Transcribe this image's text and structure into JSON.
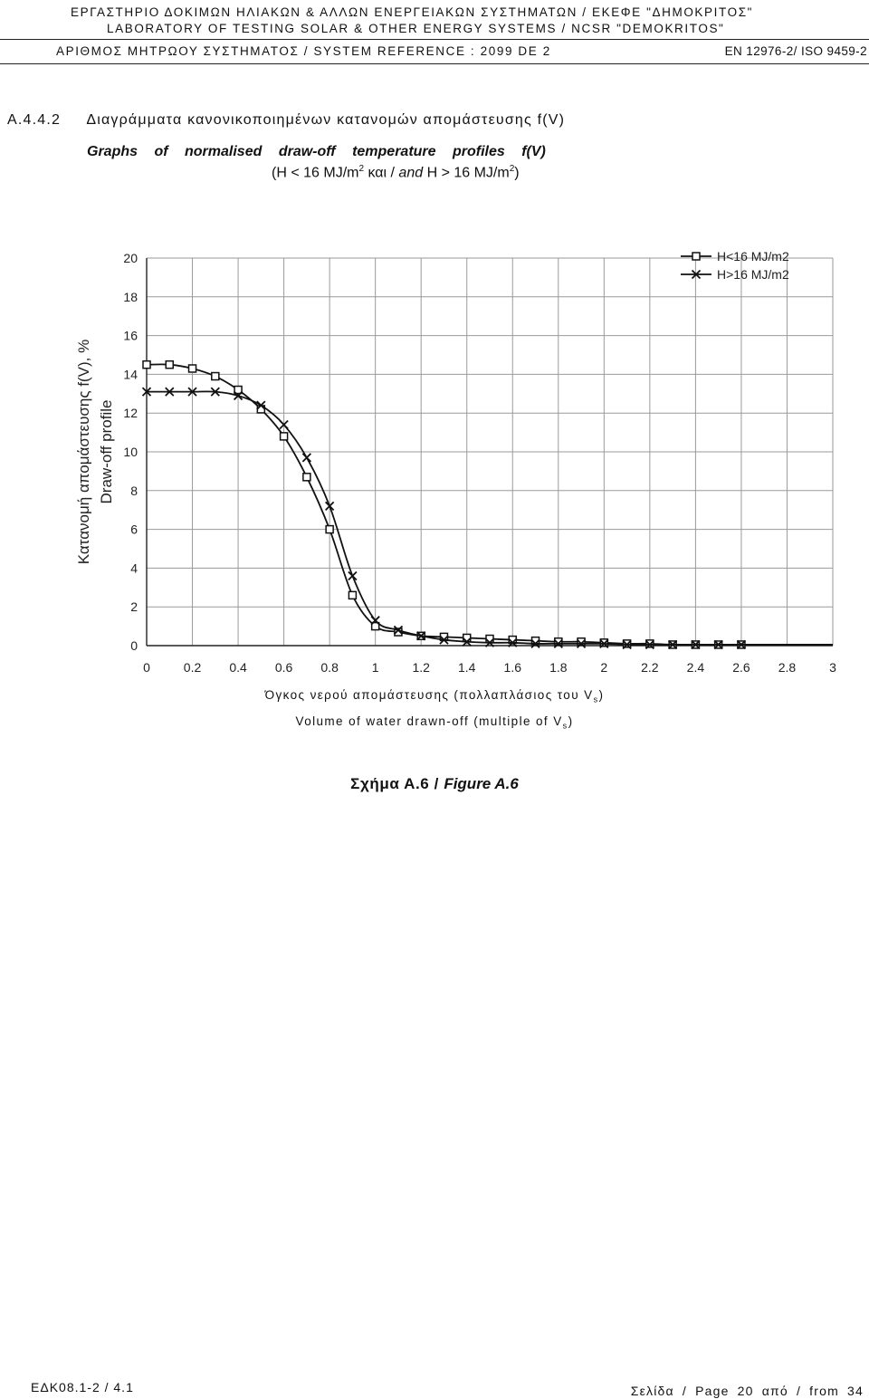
{
  "header": {
    "line1": "ΕΡΓΑΣΤΗΡΙΟ ΔΟΚΙΜΩΝ ΗΛΙΑΚΩΝ & ΑΛΛΩΝ ΕΝΕΡΓΕΙΑΚΩΝ ΣΥΣΤΗΜΑΤΩΝ / ΕΚΕΦΕ \"ΔΗΜΟΚΡΙΤΟΣ\"",
    "line2": "LABORATORY OF TESTING SOLAR & OTHER ENERGY SYSTEMS / NCSR \"DEMOKRITOS\"",
    "ref": "ΑΡΙΘΜΟΣ ΜΗΤΡΩΟΥ ΣΥΣΤΗΜΑΤΟΣ / SYSTEM REFERENCE : 2099 DE 2",
    "standard": "EN 12976-2/ ISO 9459-2"
  },
  "section": {
    "number": "A.4.4.2",
    "title_gr": "Διαγράμματα κανονικοποιημένων κατανομών απομάστευσης f(V)",
    "title_en": "Graphs of normalised draw-off temperature profiles f(V)",
    "cond_a": "(H < 16 MJ/m",
    "cond_sup1": "2",
    "cond_b": " και / ",
    "cond_and": "and",
    "cond_c": " H > 16 MJ/m",
    "cond_sup2": "2",
    "cond_d": ")"
  },
  "xaxis": {
    "line1": "Όγκος νερού απομάστευσης (πολλαπλάσιος του V",
    "line1_sub": "s",
    "line1_end": ")",
    "line2": "Volume of water drawn-off (multiple of V",
    "line2_sub": "s",
    "line2_end": ")"
  },
  "figure": {
    "label_gr": "Σχήμα Α.6 / ",
    "label_en": "Figure A.6"
  },
  "footer": {
    "code": "ΕΔΚ08.1-2 / 4.1",
    "page": "Σελίδα / Page 20 από / from 34"
  },
  "chart_data": {
    "type": "line",
    "ylabel_line1": "Κατανομή απομάστευσης f(V), %",
    "ylabel_line2": "Draw-off profile",
    "xlim": [
      0,
      3
    ],
    "ylim": [
      0,
      20
    ],
    "grid": true,
    "legend_position": "top-right",
    "x_ticks": [
      "0",
      "0.2",
      "0.4",
      "0.6",
      "0.8",
      "1",
      "1.2",
      "1.4",
      "1.6",
      "1.8",
      "2",
      "2.2",
      "2.4",
      "2.6",
      "2.8",
      "3"
    ],
    "y_ticks": [
      "0",
      "2",
      "4",
      "6",
      "8",
      "10",
      "12",
      "14",
      "16",
      "18",
      "20"
    ],
    "series": [
      {
        "name": "H<16 MJ/m2",
        "marker": "square",
        "color": "#111111",
        "x": [
          0,
          0.1,
          0.2,
          0.3,
          0.4,
          0.5,
          0.6,
          0.7,
          0.8,
          0.9,
          1.0,
          1.1,
          1.2,
          1.3,
          1.4,
          1.5,
          1.6,
          1.7,
          1.8,
          1.9,
          2.0,
          2.1,
          2.2,
          2.3,
          2.4,
          2.5,
          2.6
        ],
        "values": [
          14.5,
          14.5,
          14.3,
          13.9,
          13.2,
          12.2,
          10.8,
          8.7,
          6.0,
          2.6,
          1.0,
          0.7,
          0.5,
          0.45,
          0.4,
          0.35,
          0.3,
          0.25,
          0.2,
          0.2,
          0.15,
          0.1,
          0.1,
          0.05,
          0.05,
          0.05,
          0.05
        ],
        "line_end_x": 3.0
      },
      {
        "name": "H>16 MJ/m2",
        "marker": "cross",
        "color": "#111111",
        "x": [
          0,
          0.1,
          0.2,
          0.3,
          0.4,
          0.5,
          0.6,
          0.7,
          0.8,
          0.9,
          1.0,
          1.1,
          1.2,
          1.3,
          1.4,
          1.5,
          1.6,
          1.7,
          1.8,
          1.9,
          2.0,
          2.1,
          2.2,
          2.3,
          2.4,
          2.5,
          2.6
        ],
        "values": [
          13.1,
          13.1,
          13.1,
          13.1,
          12.9,
          12.4,
          11.4,
          9.7,
          7.2,
          3.6,
          1.3,
          0.8,
          0.5,
          0.3,
          0.2,
          0.15,
          0.15,
          0.1,
          0.1,
          0.1,
          0.1,
          0.05,
          0.05,
          0.05,
          0.05,
          0.05,
          0.05
        ],
        "line_end_x": 3.0
      }
    ]
  }
}
